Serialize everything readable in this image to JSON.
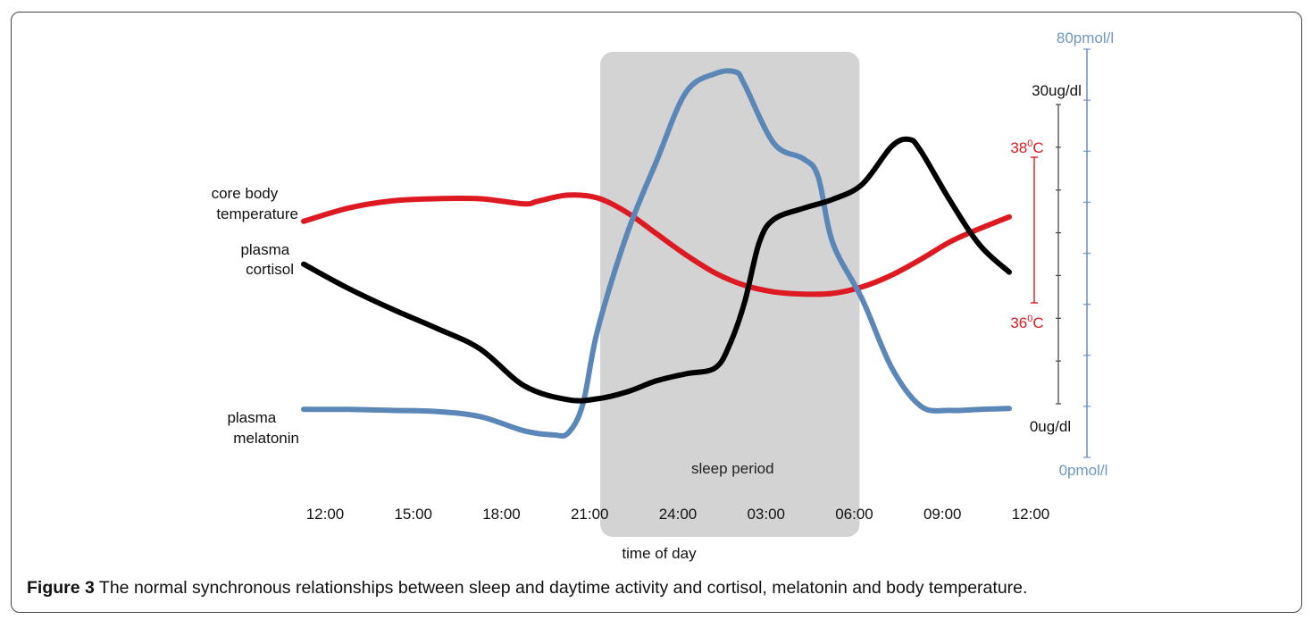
{
  "caption": {
    "label": "Figure 3",
    "text": " The normal synchronous relationships between sleep and daytime activity and cortisol, melatonin and body temperature."
  },
  "colors": {
    "temperature": "#dd1a22",
    "cortisol": "#000000",
    "melatonin": "#5b87b8",
    "sleep_band": "#d3d3d3",
    "melatonin_axis": "#6e95c4"
  },
  "chart_data": {
    "type": "line",
    "xlabel": "time of day",
    "x_ticks": [
      "12:00",
      "15:00",
      "18:00",
      "21:00",
      "24:00",
      "03:00",
      "06:00",
      "09:00",
      "12:00"
    ],
    "x_range_hours": [
      12,
      36
    ],
    "sleep_period": {
      "label": "sleep period",
      "start_hours": 23,
      "end_hours": 31
    },
    "axes": {
      "temperature": {
        "unit": "°C",
        "min": 36,
        "max": 38,
        "min_label": "36",
        "max_label": "38",
        "label_suffix": "C",
        "degree_mark": "0"
      },
      "cortisol": {
        "unit": "ug/dl",
        "min": 0,
        "max": 30,
        "min_label": "0ug/dl",
        "max_label": "30ug/dl"
      },
      "melatonin": {
        "unit": "pmol/l",
        "min": 0,
        "max": 80,
        "min_label": "0pmol/l",
        "max_label": "80pmol/l"
      }
    },
    "series": [
      {
        "name": "core body temperature",
        "label_lines": [
          "core body",
          "temperature"
        ],
        "axis": "temperature",
        "x": [
          12,
          13.5,
          15,
          16.5,
          18,
          19.5,
          20,
          21,
          22,
          23,
          24,
          25,
          26,
          27,
          28,
          29,
          30,
          31,
          32,
          33,
          34,
          35,
          36
        ],
        "y": [
          37.12,
          37.3,
          37.4,
          37.43,
          37.43,
          37.36,
          37.4,
          37.48,
          37.44,
          37.24,
          36.95,
          36.66,
          36.41,
          36.24,
          36.15,
          36.12,
          36.13,
          36.22,
          36.38,
          36.6,
          36.84,
          37.02,
          37.18
        ]
      },
      {
        "name": "plasma cortisol",
        "label_lines": [
          "plasma",
          "cortisol"
        ],
        "axis": "cortisol",
        "x": [
          12,
          13.5,
          15,
          16.5,
          18,
          19.5,
          21,
          22,
          23,
          24,
          25,
          26,
          26.5,
          27,
          27.5,
          28,
          29,
          30,
          31,
          32,
          32.6,
          33,
          34,
          35,
          36
        ],
        "y": [
          14,
          11.6,
          9.5,
          7.6,
          5.5,
          1.8,
          0.4,
          0.5,
          1.2,
          2.3,
          3.0,
          3.6,
          6.0,
          10.2,
          16.2,
          18.5,
          19.6,
          20.5,
          22.0,
          25.8,
          26.5,
          25.3,
          20.3,
          15.9,
          13.2
        ]
      },
      {
        "name": "plasma melatonin",
        "label_lines": [
          "plasma",
          "melatonin"
        ],
        "axis": "melatonin",
        "x": [
          12,
          13.5,
          15,
          16.5,
          18,
          19.5,
          20.5,
          21,
          21.5,
          22,
          23,
          24,
          25,
          26,
          26.7,
          27,
          28,
          29,
          29.5,
          30,
          31,
          32,
          33,
          34,
          35,
          36
        ],
        "y": [
          9.4,
          9.4,
          9.2,
          9.0,
          8.0,
          5.2,
          4.4,
          4.8,
          10.5,
          25.0,
          43.8,
          58.0,
          71.5,
          75.2,
          75.5,
          73.0,
          61.5,
          58.5,
          55.0,
          42.0,
          31.0,
          17.6,
          10.0,
          9.2,
          9.4,
          9.6
        ]
      }
    ]
  }
}
